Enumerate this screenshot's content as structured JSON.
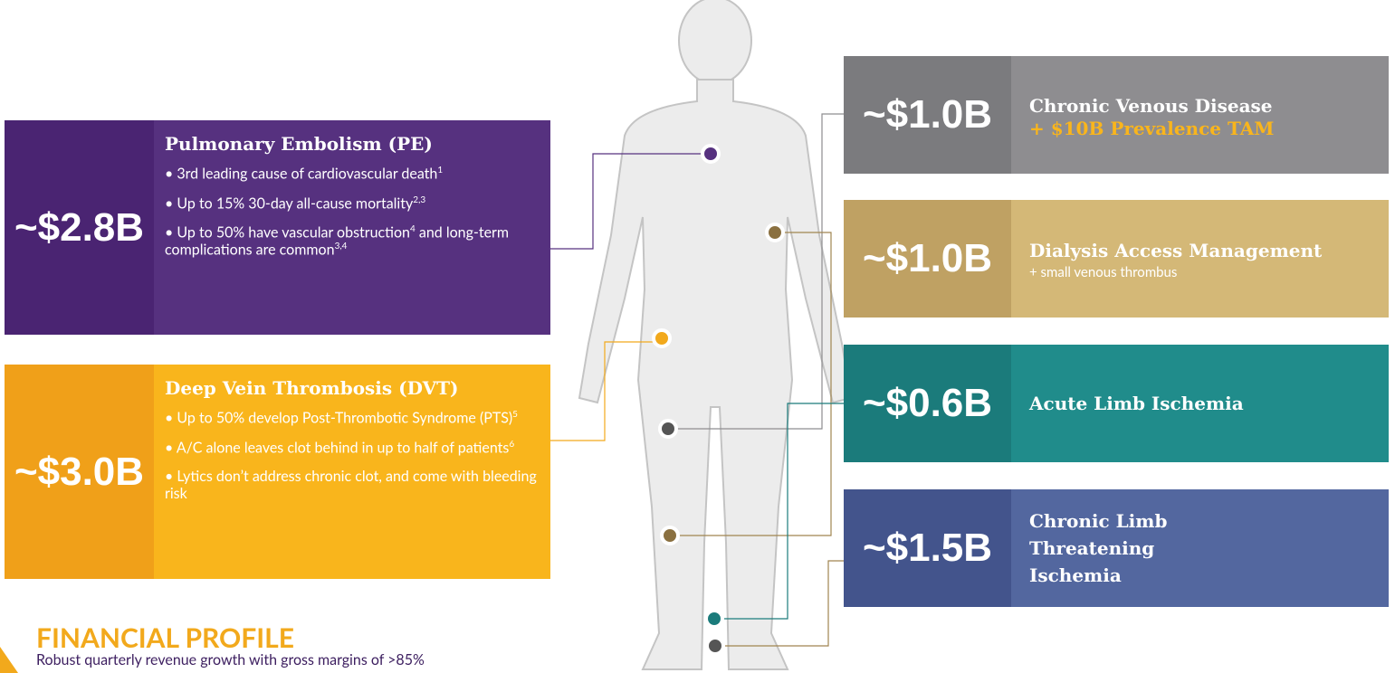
{
  "left_panels": [
    {
      "value": "~$2.8B",
      "title": "Pulmonary Embolism (PE)",
      "bullets": [
        [
          {
            "t": "• 3rd leading cause of cardiovascular death"
          },
          {
            "sup": "1"
          }
        ],
        [
          {
            "t": "• Up to 15% 30-day all-cause mortality"
          },
          {
            "sup": "2,3"
          }
        ],
        [
          {
            "t": "• Up to 50% have vascular obstruction"
          },
          {
            "sup": "4"
          },
          {
            "t": " and long-term complications are common"
          },
          {
            "sup": "3,4"
          }
        ]
      ]
    },
    {
      "value": "~$3.0B",
      "title": "Deep Vein Thrombosis (DVT)",
      "bullets": [
        [
          {
            "t": "• Up to 50% develop Post-Thrombotic Syndrome (PTS)"
          },
          {
            "sup": "5"
          }
        ],
        [
          {
            "t": "• A/C alone leaves clot behind in up to half of patients"
          },
          {
            "sup": "6"
          }
        ],
        [
          {
            "t": "• Lytics don’t address chronic clot, and come with bleeding risk"
          }
        ]
      ]
    }
  ],
  "right_panels": [
    {
      "value": "~$1.0B",
      "title": "Chronic Venous Disease",
      "subtitle": "+ $10B Prevalence TAM"
    },
    {
      "value": "~$1.0B",
      "title": "Dialysis Access Management",
      "subtitle": "+ small venous thrombus"
    },
    {
      "value": "~$0.6B",
      "title": "Acute Limb Ischemia"
    },
    {
      "value": "~$1.5B",
      "title": "Chronic Limb Threatening Ischemia"
    }
  ],
  "footer": {
    "title": "FINANCIAL PROFILE",
    "text": "Robust quarterly revenue growth with gross margins of >85%"
  }
}
